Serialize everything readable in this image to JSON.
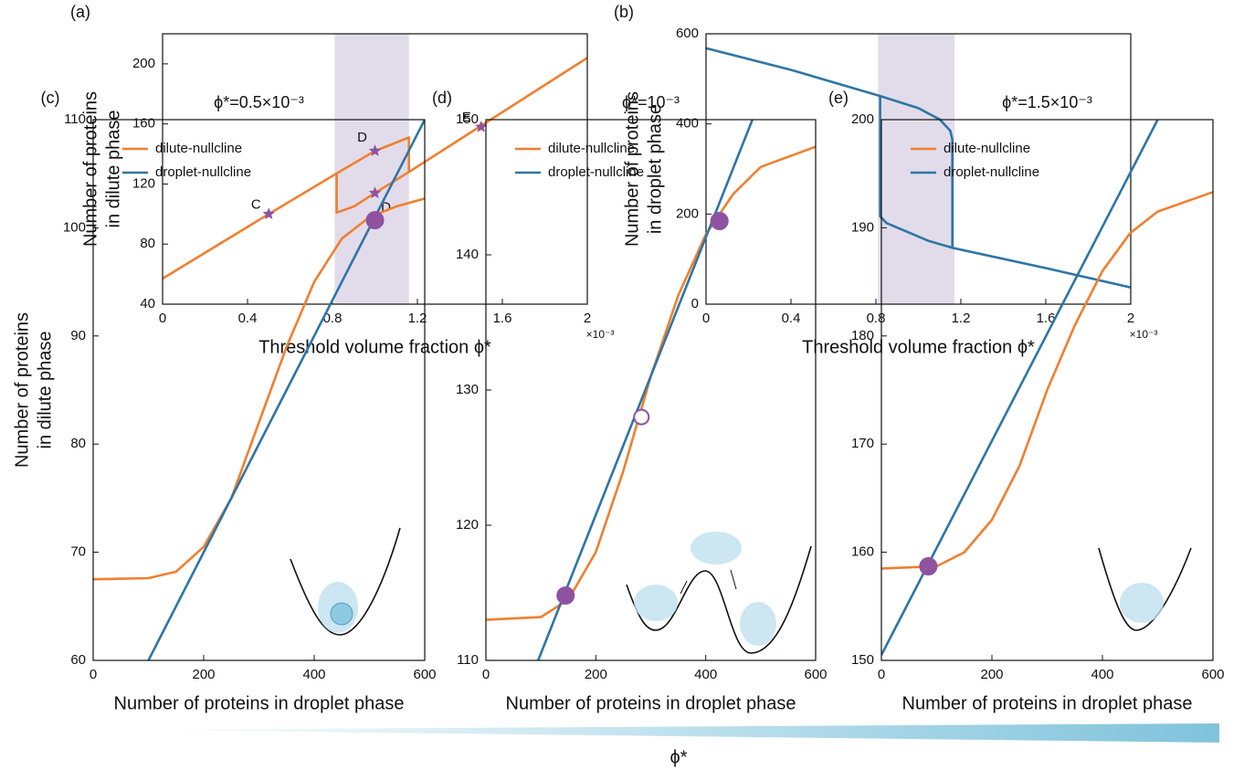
{
  "chart_data": [
    {
      "type": "line",
      "panel_label": "(a)",
      "xlabel": "Threshold volume fraction ϕ*",
      "ylabel": [
        "Number of proteins",
        "in dilute phase"
      ],
      "x_multiplier": "×10⁻³",
      "xlim": [
        0,
        2
      ],
      "xticks": [
        0,
        0.4,
        0.8,
        1.2,
        1.6,
        2
      ],
      "ylim": [
        40,
        220
      ],
      "yticks": [
        40,
        80,
        120,
        160,
        200
      ],
      "shaded_xrange": [
        0.81,
        1.16
      ],
      "shade_color": "#e2dcea",
      "series": [
        {
          "color": "#f07f2f",
          "x": [
            0,
            0.5,
            0.82,
            1.0,
            1.16,
            1.16,
            2,
            null,
            0.82,
            0.82,
            0.9,
            1.0,
            1.16
          ],
          "values": [
            57,
            100,
            127,
            142,
            151,
            128,
            204,
            null,
            127,
            101,
            105,
            114,
            128
          ]
        }
      ],
      "points": {
        "shape": "star",
        "color": "#8e52a1",
        "x": [
          0.5,
          1.0,
          1.0,
          1.5
        ],
        "values": [
          100,
          142,
          114,
          158
        ],
        "labels": [
          "C",
          "D",
          "D",
          "E"
        ]
      }
    },
    {
      "type": "line",
      "panel_label": "(b)",
      "xlabel": "Threshold volume fraction ϕ*",
      "ylabel": [
        "Number of proteins",
        "in droplet phase"
      ],
      "x_multiplier": "×10⁻³",
      "xlim": [
        0,
        2
      ],
      "xticks": [
        0,
        0.4,
        0.8,
        1.2,
        1.6,
        2
      ],
      "ylim": [
        0,
        600
      ],
      "yticks": [
        0,
        200,
        400,
        600
      ],
      "shaded_xrange": [
        0.81,
        1.17
      ],
      "shade_color": "#e2dcea",
      "series": [
        {
          "color": "#2e75a6",
          "x": [
            0,
            0.4,
            0.82,
            1.0,
            1.1,
            1.15,
            1.16,
            1.16,
            1.6,
            2,
            null,
            0.82,
            0.82,
            0.85,
            0.95,
            1.05,
            1.16
          ],
          "values": [
            568,
            520,
            462,
            435,
            410,
            385,
            365,
            125,
            80,
            37,
            null,
            462,
            195,
            180,
            160,
            140,
            125
          ]
        }
      ]
    },
    {
      "type": "line",
      "panel_label": "(c)",
      "title": "ϕ*=0.5×10⁻³",
      "xlabel": "Number of proteins in droplet phase",
      "ylabel": [
        "Number of proteins",
        "in dilute phase"
      ],
      "xlim": [
        0,
        600
      ],
      "xticks": [
        0,
        200,
        400,
        600
      ],
      "ylim": [
        60,
        110
      ],
      "yticks": [
        60,
        70,
        80,
        90,
        100,
        110
      ],
      "legend": "upper left",
      "series": [
        {
          "name": "dilute-nullcline",
          "color": "#f07f2f",
          "x": [
            0,
            100,
            150,
            200,
            250,
            300,
            350,
            400,
            450,
            500,
            550,
            600
          ],
          "values": [
            67.5,
            67.6,
            68.2,
            70.5,
            75,
            82,
            89,
            95,
            99,
            101,
            102,
            102.7
          ]
        },
        {
          "name": "droplet-nullcline",
          "color": "#2e75a6",
          "x": [
            100,
            600
          ],
          "values": [
            60,
            110
          ]
        }
      ],
      "points": {
        "shape": "circle",
        "color": "#8e52a1",
        "x": [
          510
        ],
        "values": [
          100.7
        ],
        "filled": [
          true
        ]
      }
    },
    {
      "type": "line",
      "panel_label": "(d)",
      "title": "ϕ*=10⁻³",
      "xlabel": "Number of proteins in droplet phase",
      "xlim": [
        0,
        600
      ],
      "xticks": [
        0,
        200,
        400,
        600
      ],
      "ylim": [
        110,
        150
      ],
      "yticks": [
        110,
        120,
        130,
        140,
        150
      ],
      "legend": "upper left",
      "series": [
        {
          "name": "dilute-nullcline",
          "color": "#f07f2f",
          "x": [
            0,
            100,
            150,
            200,
            250,
            300,
            350,
            400,
            450,
            500,
            600
          ],
          "values": [
            113,
            113.2,
            114.5,
            118,
            124,
            131,
            137,
            141.5,
            144.5,
            146.5,
            148
          ]
        },
        {
          "name": "droplet-nullcline",
          "color": "#2e75a6",
          "x": [
            95,
            485
          ],
          "values": [
            110,
            150
          ]
        }
      ],
      "points": {
        "shape": "circle",
        "color": "#8e52a1",
        "x": [
          145,
          283,
          425
        ],
        "values": [
          114.8,
          128,
          142.5
        ],
        "filled": [
          true,
          false,
          true
        ]
      }
    },
    {
      "type": "line",
      "panel_label": "(e)",
      "title": "ϕ*=1.5×10⁻³",
      "xlabel": "Number of proteins in droplet phase",
      "xlim": [
        0,
        600
      ],
      "xticks": [
        0,
        200,
        400,
        600
      ],
      "ylim": [
        150,
        200
      ],
      "yticks": [
        150,
        160,
        170,
        180,
        190,
        200
      ],
      "legend": "upper left",
      "series": [
        {
          "name": "dilute-nullcline",
          "color": "#f07f2f",
          "x": [
            0,
            100,
            150,
            200,
            250,
            300,
            350,
            400,
            450,
            500,
            600
          ],
          "values": [
            158.5,
            158.7,
            160,
            163,
            168,
            175,
            181,
            186,
            189.5,
            191.5,
            193.3
          ]
        },
        {
          "name": "droplet-nullcline",
          "color": "#2e75a6",
          "x": [
            0,
            500
          ],
          "values": [
            150.5,
            200
          ]
        }
      ],
      "points": {
        "shape": "circle",
        "color": "#8e52a1",
        "x": [
          85
        ],
        "values": [
          158.7
        ],
        "filled": [
          true
        ]
      }
    }
  ],
  "footer": {
    "label": "ϕ*"
  }
}
